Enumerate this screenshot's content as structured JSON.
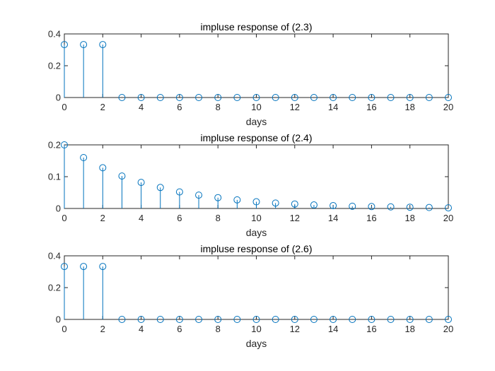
{
  "chart_data": [
    {
      "type": "stem",
      "title": "impluse response of (2.3)",
      "xlabel": "days",
      "ylabel": "",
      "xlim": [
        0,
        20
      ],
      "ylim": [
        0,
        0.4
      ],
      "xticks": [
        0,
        2,
        4,
        6,
        8,
        10,
        12,
        14,
        16,
        18,
        20
      ],
      "yticks": [
        0,
        0.2,
        0.4
      ],
      "x": [
        0,
        1,
        2,
        3,
        4,
        5,
        6,
        7,
        8,
        9,
        10,
        11,
        12,
        13,
        14,
        15,
        16,
        17,
        18,
        19,
        20
      ],
      "y": [
        0.333,
        0.333,
        0.333,
        0,
        0,
        0,
        0,
        0,
        0,
        0,
        0,
        0,
        0,
        0,
        0,
        0,
        0,
        0,
        0,
        0,
        0
      ],
      "color": "#0072BD",
      "grid": false
    },
    {
      "type": "stem",
      "title": "impluse response of (2.4)",
      "xlabel": "days",
      "ylabel": "",
      "xlim": [
        0,
        20
      ],
      "ylim": [
        0,
        0.2
      ],
      "xticks": [
        0,
        2,
        4,
        6,
        8,
        10,
        12,
        14,
        16,
        18,
        20
      ],
      "yticks": [
        0,
        0.1,
        0.2
      ],
      "x": [
        0,
        1,
        2,
        3,
        4,
        5,
        6,
        7,
        8,
        9,
        10,
        11,
        12,
        13,
        14,
        15,
        16,
        17,
        18,
        19,
        20
      ],
      "y": [
        0.2,
        0.16,
        0.128,
        0.102,
        0.082,
        0.066,
        0.052,
        0.042,
        0.034,
        0.027,
        0.021,
        0.017,
        0.014,
        0.011,
        0.009,
        0.007,
        0.006,
        0.005,
        0.004,
        0.003,
        0.002
      ],
      "color": "#0072BD",
      "grid": false
    },
    {
      "type": "stem",
      "title": "impluse response of (2.6)",
      "xlabel": "days",
      "ylabel": "",
      "xlim": [
        0,
        20
      ],
      "ylim": [
        0,
        0.4
      ],
      "xticks": [
        0,
        2,
        4,
        6,
        8,
        10,
        12,
        14,
        16,
        18,
        20
      ],
      "yticks": [
        0,
        0.2,
        0.4
      ],
      "x": [
        0,
        1,
        2,
        3,
        4,
        5,
        6,
        7,
        8,
        9,
        10,
        11,
        12,
        13,
        14,
        15,
        16,
        17,
        18,
        19,
        20
      ],
      "y": [
        0.333,
        0.333,
        0.333,
        0,
        0,
        0,
        0,
        0,
        0,
        0,
        0,
        0,
        0,
        0,
        0,
        0,
        0,
        0,
        0,
        0,
        0
      ],
      "color": "#0072BD",
      "grid": false
    }
  ]
}
